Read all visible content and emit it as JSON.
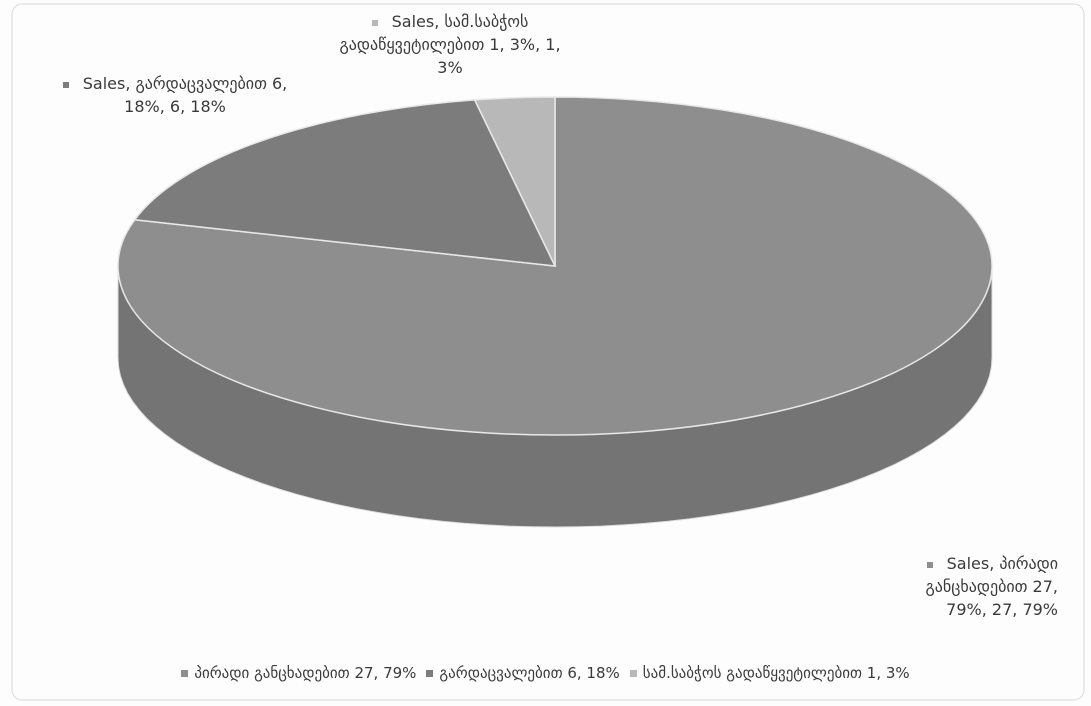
{
  "chart_data": {
    "type": "pie3d",
    "categories": [
      "პირადი განცხადებით 27, 79%",
      "გარდაცვალებით 6, 18%",
      "სამ.საბჭოს გადაწყვეტილებით 1, 3%"
    ],
    "series": [
      {
        "name": "Sales",
        "values": [
          27,
          6,
          1
        ],
        "value_labels": [
          "Sales, პირადი განცხადებით 27, 79%, 27, 79%",
          "Sales, გარდაცვალებით 6, 18%, 6, 18%",
          "Sales, სამ.საბჭოს გადაწყვეტილებით 1, 3%, 1, 3%"
        ],
        "colors": [
          "#8e8e8e",
          "#7c7c7c",
          "#b8b8b8"
        ]
      }
    ],
    "legend": "bottom"
  }
}
